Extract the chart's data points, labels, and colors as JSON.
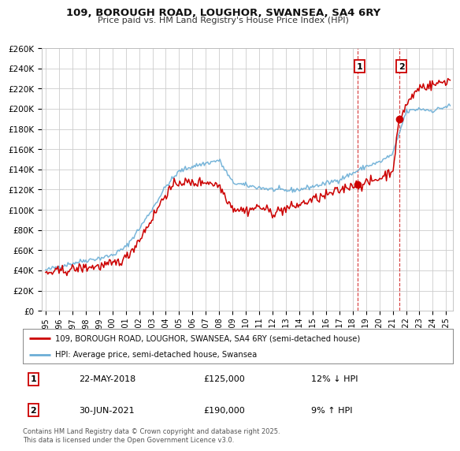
{
  "title_line1": "109, BOROUGH ROAD, LOUGHOR, SWANSEA, SA4 6RY",
  "title_line2": "Price paid vs. HM Land Registry's House Price Index (HPI)",
  "legend_line1": "109, BOROUGH ROAD, LOUGHOR, SWANSEA, SA4 6RY (semi-detached house)",
  "legend_line2": "HPI: Average price, semi-detached house, Swansea",
  "event1_label": "1",
  "event1_date_str": "22-MAY-2018",
  "event1_price_str": "£125,000",
  "event1_note": "12% ↓ HPI",
  "event2_label": "2",
  "event2_date_str": "30-JUN-2021",
  "event2_price_str": "£190,000",
  "event2_note": "9% ↑ HPI",
  "event1_x": 2018.385,
  "event2_x": 2021.495,
  "event1_price": 125000,
  "event2_price": 190000,
  "footer": "Contains HM Land Registry data © Crown copyright and database right 2025.\nThis data is licensed under the Open Government Licence v3.0.",
  "ylim": [
    0,
    260000
  ],
  "xlim_start": 1994.7,
  "xlim_end": 2025.5,
  "hpi_color": "#6baed6",
  "price_color": "#cc0000",
  "grid_color": "#cccccc",
  "bg_color": "#ffffff",
  "event_color": "#cc0000"
}
